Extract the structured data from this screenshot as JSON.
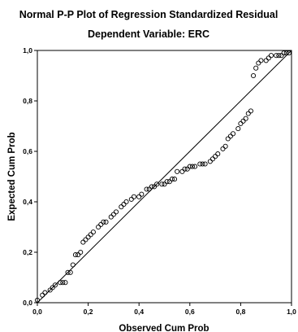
{
  "chart_data": {
    "type": "scatter",
    "title": "Normal P-P Plot of Regression Standardized Residual",
    "subtitle": "Dependent Variable: ERC",
    "xlabel": "Observed Cum Prob",
    "ylabel": "Expected Cum Prob",
    "xlim": [
      0,
      1
    ],
    "ylim": [
      0,
      1
    ],
    "x_ticks": [
      "0,0",
      "0,2",
      "0,4",
      "0,6",
      "0,8",
      "1,0"
    ],
    "y_ticks": [
      "0,0",
      "0,2",
      "0,4",
      "0,6",
      "0,8",
      "1,0"
    ],
    "grid": false,
    "legend": "none",
    "reference_line": [
      [
        0,
        0
      ],
      [
        1,
        1
      ]
    ],
    "series": [
      {
        "marker": "open-circle",
        "color": "#000000",
        "points": [
          [
            0.0,
            0.01
          ],
          [
            0.02,
            0.03
          ],
          [
            0.03,
            0.04
          ],
          [
            0.05,
            0.05
          ],
          [
            0.06,
            0.06
          ],
          [
            0.07,
            0.07
          ],
          [
            0.09,
            0.08
          ],
          [
            0.1,
            0.08
          ],
          [
            0.11,
            0.08
          ],
          [
            0.12,
            0.12
          ],
          [
            0.13,
            0.12
          ],
          [
            0.14,
            0.15
          ],
          [
            0.15,
            0.19
          ],
          [
            0.16,
            0.19
          ],
          [
            0.17,
            0.2
          ],
          [
            0.18,
            0.24
          ],
          [
            0.19,
            0.25
          ],
          [
            0.2,
            0.26
          ],
          [
            0.21,
            0.27
          ],
          [
            0.22,
            0.28
          ],
          [
            0.24,
            0.3
          ],
          [
            0.25,
            0.31
          ],
          [
            0.26,
            0.32
          ],
          [
            0.27,
            0.32
          ],
          [
            0.29,
            0.34
          ],
          [
            0.3,
            0.35
          ],
          [
            0.31,
            0.36
          ],
          [
            0.33,
            0.38
          ],
          [
            0.34,
            0.39
          ],
          [
            0.35,
            0.4
          ],
          [
            0.37,
            0.41
          ],
          [
            0.38,
            0.42
          ],
          [
            0.4,
            0.42
          ],
          [
            0.41,
            0.43
          ],
          [
            0.43,
            0.45
          ],
          [
            0.44,
            0.45
          ],
          [
            0.45,
            0.46
          ],
          [
            0.46,
            0.46
          ],
          [
            0.47,
            0.47
          ],
          [
            0.49,
            0.47
          ],
          [
            0.5,
            0.47
          ],
          [
            0.51,
            0.48
          ],
          [
            0.52,
            0.48
          ],
          [
            0.53,
            0.49
          ],
          [
            0.54,
            0.49
          ],
          [
            0.55,
            0.52
          ],
          [
            0.57,
            0.52
          ],
          [
            0.58,
            0.53
          ],
          [
            0.59,
            0.53
          ],
          [
            0.6,
            0.54
          ],
          [
            0.61,
            0.54
          ],
          [
            0.62,
            0.54
          ],
          [
            0.64,
            0.55
          ],
          [
            0.65,
            0.55
          ],
          [
            0.66,
            0.55
          ],
          [
            0.68,
            0.56
          ],
          [
            0.69,
            0.57
          ],
          [
            0.7,
            0.58
          ],
          [
            0.71,
            0.59
          ],
          [
            0.73,
            0.61
          ],
          [
            0.74,
            0.62
          ],
          [
            0.75,
            0.65
          ],
          [
            0.76,
            0.66
          ],
          [
            0.77,
            0.67
          ],
          [
            0.79,
            0.69
          ],
          [
            0.8,
            0.71
          ],
          [
            0.81,
            0.72
          ],
          [
            0.82,
            0.73
          ],
          [
            0.83,
            0.75
          ],
          [
            0.84,
            0.76
          ],
          [
            0.85,
            0.9
          ],
          [
            0.86,
            0.93
          ],
          [
            0.87,
            0.95
          ],
          [
            0.88,
            0.96
          ],
          [
            0.9,
            0.96
          ],
          [
            0.91,
            0.97
          ],
          [
            0.92,
            0.98
          ],
          [
            0.94,
            0.98
          ],
          [
            0.95,
            0.98
          ],
          [
            0.96,
            0.98
          ],
          [
            0.97,
            0.99
          ],
          [
            0.98,
            0.99
          ],
          [
            0.99,
            0.99
          ]
        ]
      }
    ]
  }
}
